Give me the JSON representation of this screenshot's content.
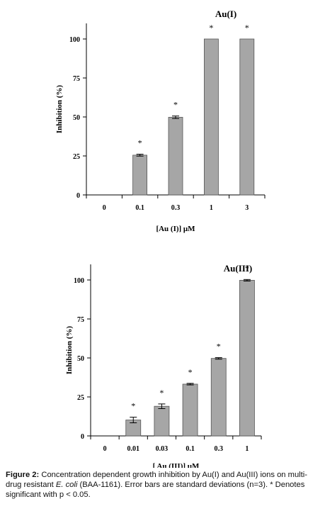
{
  "chart_data": [
    {
      "type": "bar",
      "title": "Au(I)",
      "xlabel": "[Au (I)] μM",
      "ylabel": "Inhibition (%)",
      "categories": [
        "0",
        "0.1",
        "0.3",
        "1",
        "3"
      ],
      "values": [
        0,
        25.5,
        49.8,
        100,
        100
      ],
      "errors": [
        0,
        0.6,
        0.8,
        0,
        0
      ],
      "significance": [
        "",
        "*",
        "*",
        "*",
        "*"
      ],
      "ylim": [
        0,
        110
      ],
      "yticks": [
        0,
        25,
        50,
        75,
        100
      ],
      "grid": false,
      "bar_color": "#a6a6a6"
    },
    {
      "type": "bar",
      "title": "Au(III)",
      "xlabel": "[ Au (III)] μM",
      "ylabel": "Inhibition (%)",
      "categories": [
        "0",
        "0.01",
        "0.03",
        "0.1",
        "0.3",
        "1"
      ],
      "values": [
        0,
        10.2,
        19.0,
        33.2,
        49.7,
        99.8
      ],
      "errors": [
        0,
        1.8,
        1.5,
        0.5,
        0.5,
        0.5
      ],
      "significance": [
        "",
        "*",
        "*",
        "*",
        "*",
        "*"
      ],
      "ylim": [
        0,
        110
      ],
      "yticks": [
        0,
        25,
        50,
        75,
        100
      ],
      "grid": false,
      "bar_color": "#a6a6a6"
    }
  ],
  "caption": {
    "label": "Figure 2:",
    "text_1": " Concentration dependent growth inhibition by Au(I) and Au(III) ions on multi-drug resistant ",
    "organism": "E. coli",
    "text_2": " (BAA-1161). Error bars are standard deviations (n=3). * Denotes significant with p < 0.05."
  }
}
